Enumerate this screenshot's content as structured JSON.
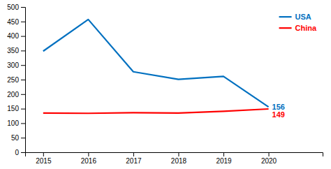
{
  "chart_data": {
    "type": "line",
    "x": [
      2015,
      2016,
      2017,
      2018,
      2019,
      2020
    ],
    "series": [
      {
        "name": "USA",
        "color": "#0070C0",
        "values": [
          348,
          457,
          277,
          251,
          261,
          156
        ]
      },
      {
        "name": "China",
        "color": "#FF0000",
        "values": [
          135,
          134,
          136,
          135,
          141,
          149
        ]
      }
    ],
    "xlim": [
      2014.6,
      2021.2
    ],
    "xticks": [
      2015,
      2016,
      2017,
      2018,
      2019,
      2020
    ],
    "ylim": [
      0,
      500
    ],
    "yticks": [
      0,
      50,
      100,
      150,
      200,
      250,
      300,
      350,
      400,
      450,
      500
    ],
    "grid": false,
    "legend": "upper right",
    "annotations": [
      {
        "text": "156",
        "x": 2020,
        "y": 156,
        "color": "#0070C0"
      },
      {
        "text": "149",
        "x": 2020,
        "y": 149,
        "color": "#FF0000"
      }
    ]
  }
}
